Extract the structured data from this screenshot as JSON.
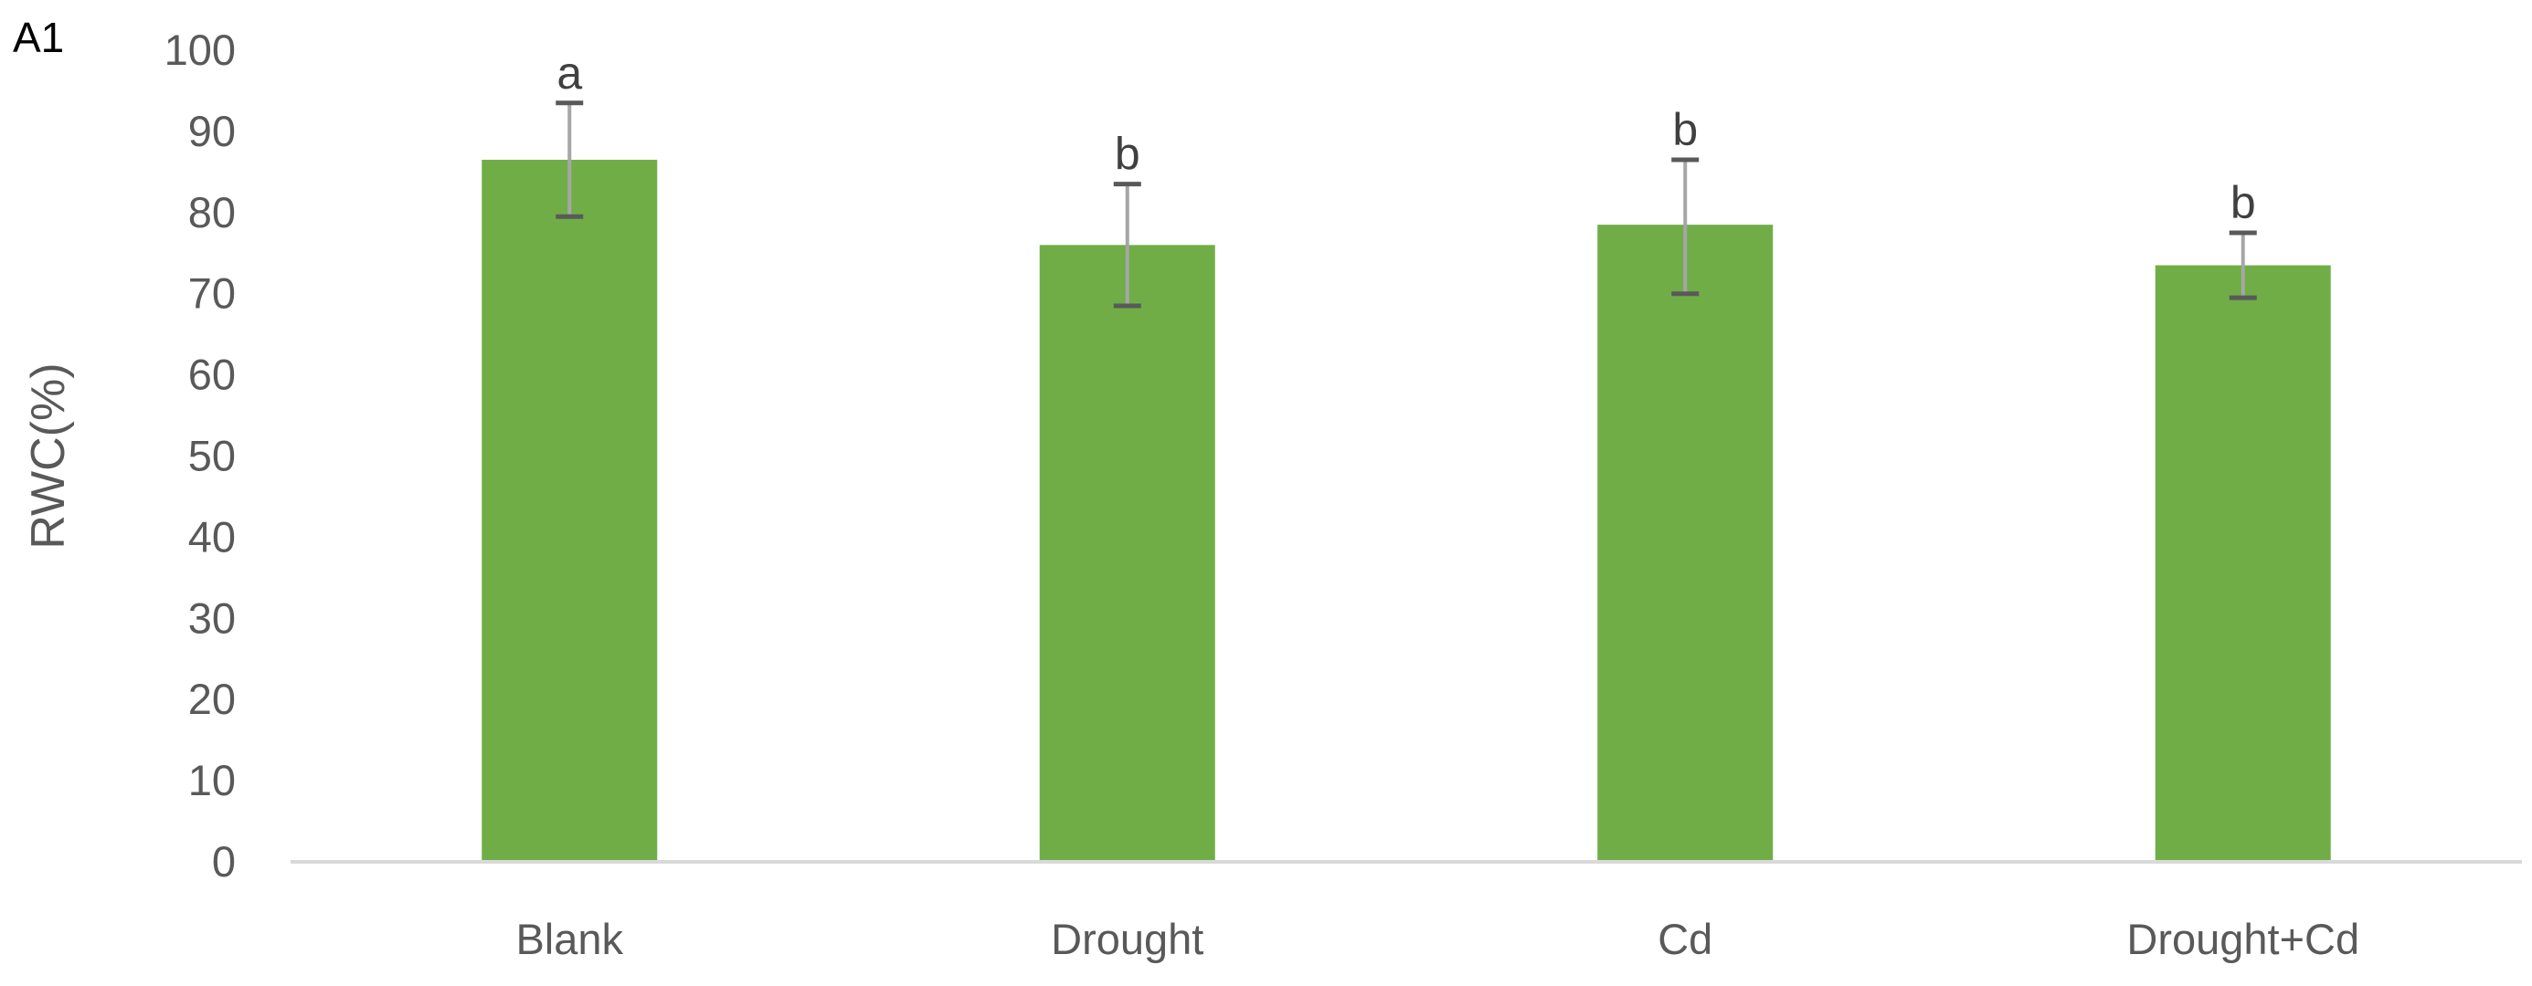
{
  "panel_label": "A1",
  "colors": {
    "bar": "#70AD47",
    "axis_line": "#D9D9D9",
    "tick_text": "#595959",
    "error_cap": "#595959",
    "error_stem": "#A6A6A6",
    "sig_text": "#404040"
  },
  "chart_data": {
    "type": "bar",
    "title": "",
    "xlabel": "",
    "ylabel": "RWC(%)",
    "ylim": [
      0,
      100
    ],
    "yticks": [
      0,
      10,
      20,
      30,
      40,
      50,
      60,
      70,
      80,
      90,
      100
    ],
    "ytick_labels": [
      "0",
      "10",
      "20",
      "30",
      "40",
      "50",
      "60",
      "70",
      "80",
      "90",
      "100"
    ],
    "categories": [
      "Blank",
      "Drought",
      "Cd",
      "Drought+Cd"
    ],
    "values": [
      86.5,
      76.0,
      78.5,
      73.5
    ],
    "error_low": [
      79.5,
      68.5,
      70.0,
      69.5
    ],
    "error_high": [
      93.5,
      83.5,
      86.5,
      77.5
    ],
    "significance": [
      "a",
      "b",
      "b",
      "b"
    ],
    "grid": false,
    "legend": "none"
  }
}
